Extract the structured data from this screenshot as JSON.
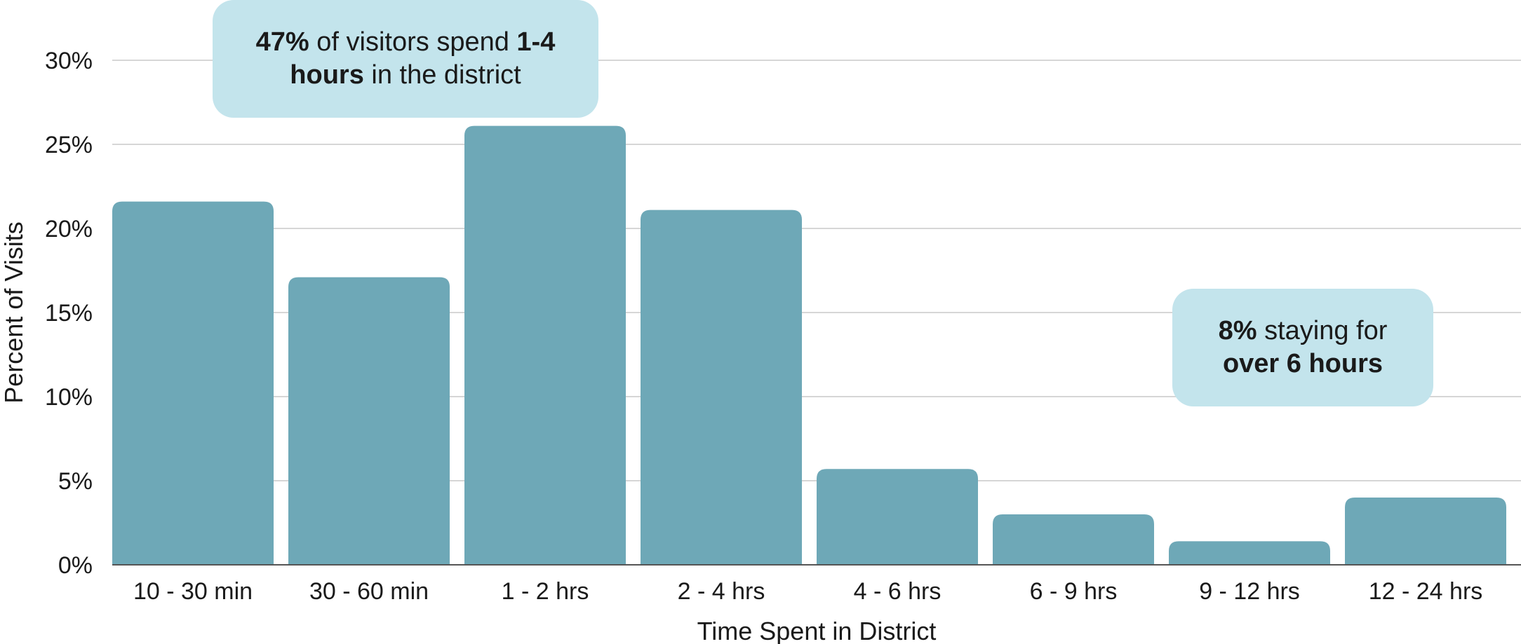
{
  "chart_data": {
    "type": "bar",
    "categories": [
      "10 - 30 min",
      "30 - 60 min",
      "1 - 2 hrs",
      "2 - 4 hrs",
      "4 - 6 hrs",
      "6 - 9 hrs",
      "9 - 12 hrs",
      "12 - 24 hrs"
    ],
    "values": [
      21.6,
      17.1,
      26.1,
      21.1,
      5.7,
      3.0,
      1.4,
      4.0
    ],
    "xlabel": "Time Spent in District",
    "ylabel": "Percent of Visits",
    "ylim": [
      0,
      30
    ],
    "yticks": [
      "0%",
      "5%",
      "10%",
      "15%",
      "20%",
      "25%",
      "30%"
    ],
    "grid": true,
    "bar_color": "#6ea8b7",
    "annotations": [
      {
        "id": "callout-1-4-hours",
        "parts": [
          {
            "text": "47%",
            "bold": true
          },
          {
            "text": " of visitors spend ",
            "bold": false
          },
          {
            "text": "1-4 hours",
            "bold": true
          },
          {
            "text": " in the district",
            "bold": false
          }
        ]
      },
      {
        "id": "callout-over-6-hours",
        "parts": [
          {
            "text": "8%",
            "bold": true
          },
          {
            "text": " staying for ",
            "bold": false
          },
          {
            "text": "over 6 hours",
            "bold": true
          }
        ]
      }
    ],
    "callout_color": "#c3e4ec"
  }
}
